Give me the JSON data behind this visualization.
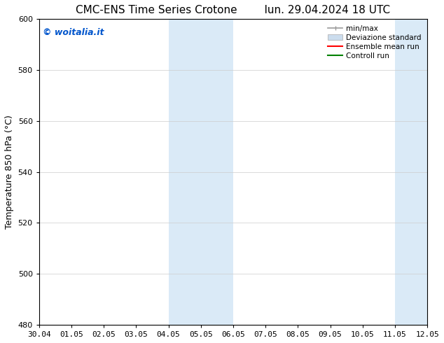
{
  "title_left": "CMC-ENS Time Series Crotone",
  "title_right": "lun. 29.04.2024 18 UTC",
  "ylabel": "Temperature 850 hPa (°C)",
  "xlabel_ticks": [
    "30.04",
    "01.05",
    "02.05",
    "03.05",
    "04.05",
    "05.05",
    "06.05",
    "07.05",
    "08.05",
    "09.05",
    "10.05",
    "11.05",
    "12.05"
  ],
  "xlim": [
    0,
    12
  ],
  "ylim": [
    480,
    600
  ],
  "yticks": [
    480,
    500,
    520,
    540,
    560,
    580,
    600
  ],
  "background_color": "#ffffff",
  "shaded_band_color": "#daeaf7",
  "shaded_bands": [
    {
      "x_start": 4.0,
      "x_end": 6.0
    },
    {
      "x_start": 11.0,
      "x_end": 12.0
    }
  ],
  "legend_entries": [
    {
      "label": "min/max",
      "color": "#999999"
    },
    {
      "label": "Deviazione standard",
      "color": "#ccddee"
    },
    {
      "label": "Ensemble mean run",
      "color": "red"
    },
    {
      "label": "Controll run",
      "color": "green"
    }
  ],
  "watermark_text": "© woitalia.it",
  "watermark_color": "#0055cc",
  "title_fontsize": 11,
  "tick_fontsize": 8,
  "ylabel_fontsize": 9,
  "legend_fontsize": 7.5
}
